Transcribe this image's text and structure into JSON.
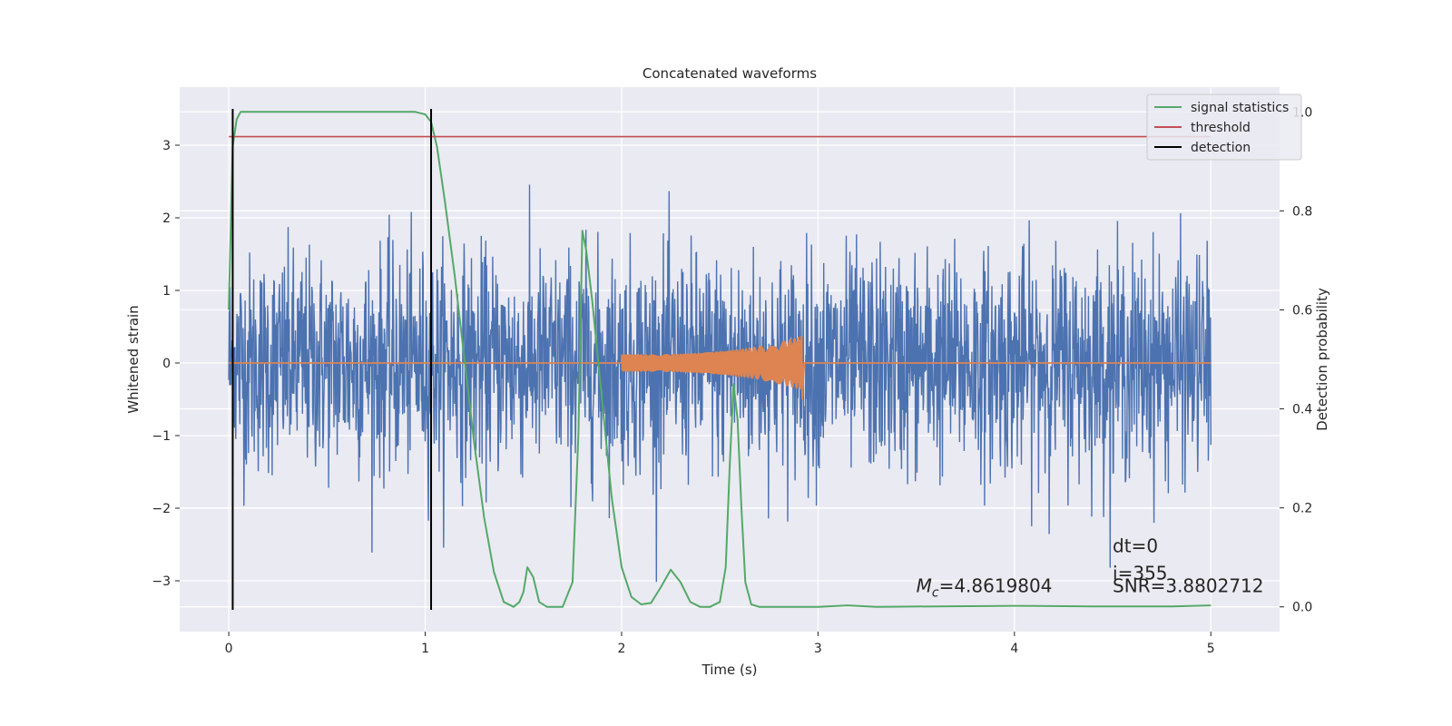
{
  "chart_data": {
    "type": "line",
    "title": "Concatenated waveforms",
    "xlabel": "Time (s)",
    "ylabel_left": "Whitened strain",
    "ylabel_right": "Detection probability",
    "xlim": [
      -0.25,
      5.35
    ],
    "ylim_left": [
      -3.7,
      3.8
    ],
    "ylim_right": [
      -0.05,
      1.05
    ],
    "x_ticks": [
      0,
      1,
      2,
      3,
      4,
      5
    ],
    "x_tick_labels": [
      "0",
      "1",
      "2",
      "3",
      "4",
      "5"
    ],
    "y_left_ticks": [
      -3,
      -2,
      -1,
      0,
      1,
      2,
      3
    ],
    "y_left_tick_labels": [
      "−3",
      "−2",
      "−1",
      "0",
      "1",
      "2",
      "3"
    ],
    "y_right_ticks": [
      0.0,
      0.2,
      0.4,
      0.6,
      0.8,
      1.0
    ],
    "y_right_tick_labels": [
      "0.0",
      "0.2",
      "0.4",
      "0.6",
      "0.8",
      "1.0"
    ],
    "grid": true,
    "legend_position": "top-right",
    "colors": {
      "background": "#eaeaf2",
      "grid": "#ffffff",
      "strain": "#4c72b0",
      "template": "#dd8452",
      "signal_statistics": "#55a868",
      "threshold": "#c44e52",
      "detection": "#000000"
    },
    "series": [
      {
        "name": "signal statistics",
        "axis": "right",
        "x": [
          0.0,
          0.02,
          0.04,
          0.06,
          0.1,
          0.2,
          0.5,
          0.8,
          0.95,
          1.0,
          1.03,
          1.06,
          1.1,
          1.15,
          1.2,
          1.25,
          1.3,
          1.35,
          1.4,
          1.45,
          1.48,
          1.5,
          1.52,
          1.55,
          1.58,
          1.62,
          1.7,
          1.75,
          1.78,
          1.8,
          1.82,
          1.85,
          1.9,
          1.95,
          2.0,
          2.05,
          2.1,
          2.15,
          2.2,
          2.25,
          2.3,
          2.35,
          2.4,
          2.45,
          2.5,
          2.53,
          2.55,
          2.57,
          2.59,
          2.61,
          2.63,
          2.66,
          2.7,
          2.8,
          3.0,
          3.15,
          3.3,
          3.6,
          4.0,
          4.4,
          4.8,
          5.0
        ],
        "y": [
          0.6,
          0.93,
          0.985,
          1.0,
          1.0,
          1.0,
          1.0,
          1.0,
          1.0,
          0.995,
          0.98,
          0.93,
          0.82,
          0.67,
          0.5,
          0.33,
          0.18,
          0.07,
          0.01,
          0.0,
          0.01,
          0.03,
          0.08,
          0.06,
          0.01,
          0.0,
          0.0,
          0.05,
          0.35,
          0.76,
          0.72,
          0.62,
          0.42,
          0.22,
          0.08,
          0.02,
          0.005,
          0.008,
          0.04,
          0.075,
          0.05,
          0.01,
          0.0,
          0.0,
          0.01,
          0.08,
          0.28,
          0.45,
          0.38,
          0.2,
          0.05,
          0.005,
          0.0,
          0.0,
          0.0,
          0.003,
          0.0,
          0.001,
          0.002,
          0.001,
          0.001,
          0.003
        ]
      },
      {
        "name": "threshold",
        "axis": "right",
        "x": [
          0.0,
          5.0
        ],
        "y": [
          0.95,
          0.95
        ]
      },
      {
        "name": "detection",
        "axis": "left",
        "segments": [
          {
            "x": 0.02,
            "y": [
              -3.4,
              3.5
            ]
          },
          {
            "x": 1.03,
            "y": [
              -3.4,
              3.5
            ]
          }
        ]
      },
      {
        "name": "",
        "axis": "left",
        "description_kind": "whitened strain noise",
        "x_range": [
          0.0,
          5.0
        ],
        "core_amplitude": 0.75,
        "peak_amplitude_range": [
          -3.4,
          3.25
        ]
      },
      {
        "name": "",
        "axis": "left",
        "description_kind": "injected chirp template",
        "x_range": [
          0.0,
          5.0
        ],
        "chirp_start": 2.0,
        "chirp_end": 2.92,
        "amplitude_start": 0.12,
        "amplitude_end": 0.38,
        "end_dip": -0.5
      }
    ],
    "annotations": [
      {
        "text_prefix": "M",
        "text_sub": "c",
        "text_rest": "=4.8619804",
        "x": 3.5,
        "y_right": 0.03
      },
      {
        "text": "dt=0",
        "x": 4.5,
        "y_right": 0.11
      },
      {
        "text": "i=355",
        "x": 4.5,
        "y_right": 0.055
      },
      {
        "text": "SNR=3.8802712",
        "x": 4.5,
        "y_right": 0.03
      }
    ]
  }
}
